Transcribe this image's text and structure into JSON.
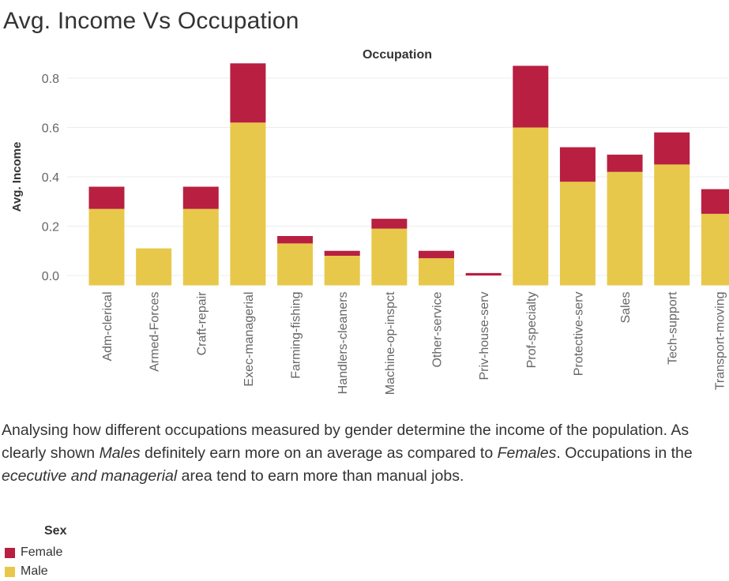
{
  "title": "Avg. Income Vs Occupation",
  "description": {
    "p1": "Analysing how different occupations measured by gender determine the income of the population. As clearly shown ",
    "em1": "Males",
    "p2": " definitely earn more on an average as compared to ",
    "em2": "Females",
    "p3": ". Occupations in the ",
    "em3": "ececutive and managerial",
    "p4": " area tend to earn more than manual jobs."
  },
  "legend": {
    "title": "Sex",
    "items": [
      {
        "label": "Female",
        "color": "#b81f41"
      },
      {
        "label": "Male",
        "color": "#e8c84a"
      }
    ]
  },
  "chart_data": {
    "type": "bar",
    "stacked": true,
    "column_header": "Occupation",
    "ylabel": "Avg. Income",
    "xlabel": "",
    "ylim": [
      -0.04,
      0.8
    ],
    "yticks": [
      0.0,
      0.2,
      0.4,
      0.6,
      0.8
    ],
    "ytick_labels": [
      "0.0",
      "0.2",
      "0.4",
      "0.6",
      "0.8"
    ],
    "grid": true,
    "categories": [
      "Adm-clerical",
      "Armed-Forces",
      "Craft-repair",
      "Exec-managerial",
      "Farming-fishing",
      "Handlers-cleaners",
      "Machine-op-inspct",
      "Other-service",
      "Priv-house-serv",
      "Prof-specialty",
      "Protective-serv",
      "Sales",
      "Tech-support",
      "Transport-moving"
    ],
    "series": [
      {
        "name": "Male",
        "color": "#e8c84a",
        "values": [
          0.27,
          0.11,
          0.27,
          0.62,
          0.13,
          0.08,
          0.19,
          0.07,
          0.0,
          0.6,
          0.38,
          0.42,
          0.45,
          0.25
        ]
      },
      {
        "name": "Female",
        "color": "#b81f41",
        "values": [
          0.09,
          0.0,
          0.09,
          0.24,
          0.03,
          0.02,
          0.04,
          0.03,
          0.01,
          0.25,
          0.14,
          0.07,
          0.13,
          0.1
        ]
      }
    ]
  }
}
